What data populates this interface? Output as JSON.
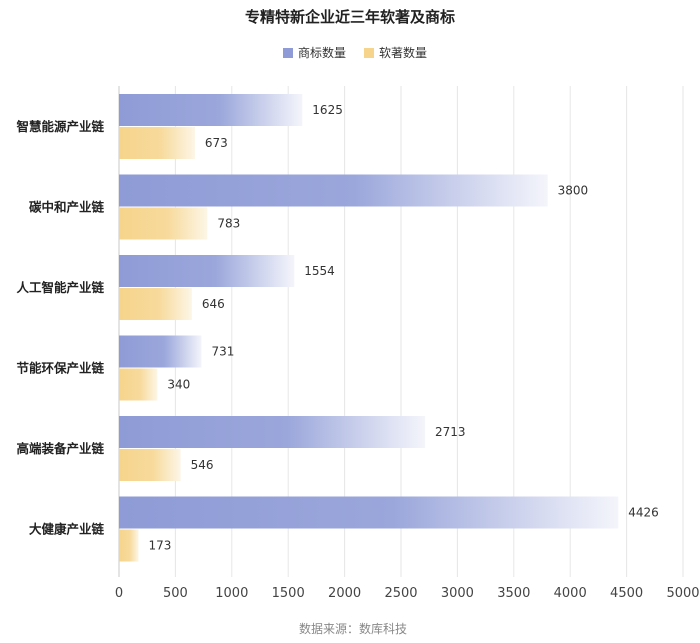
{
  "colors": {
    "trademark": "#8e9bd6",
    "software": "#f6d48b",
    "grid": "#e6e6e6",
    "axis": "#c8c8c8"
  },
  "chart_data": {
    "type": "bar",
    "orientation": "horizontal",
    "title": "专精特新企业近三年软著及商标",
    "categories": [
      "智慧能源产业链",
      "碳中和产业链",
      "人工智能产业链",
      "节能环保产业链",
      "高端装备产业链",
      "大健康产业链"
    ],
    "series": [
      {
        "name": "商标数量",
        "values": [
          1625,
          3800,
          1554,
          731,
          2713,
          4426
        ]
      },
      {
        "name": "软著数量",
        "values": [
          673,
          783,
          646,
          340,
          546,
          173
        ]
      }
    ],
    "xlim": [
      0,
      5000
    ],
    "xticks": [
      0,
      500,
      1000,
      1500,
      2000,
      2500,
      3000,
      3500,
      4000,
      4500,
      5000
    ],
    "grid": true,
    "legend_position": "top-center",
    "data_labels": true
  },
  "footer": {
    "source": "数据来源：数库科技"
  }
}
